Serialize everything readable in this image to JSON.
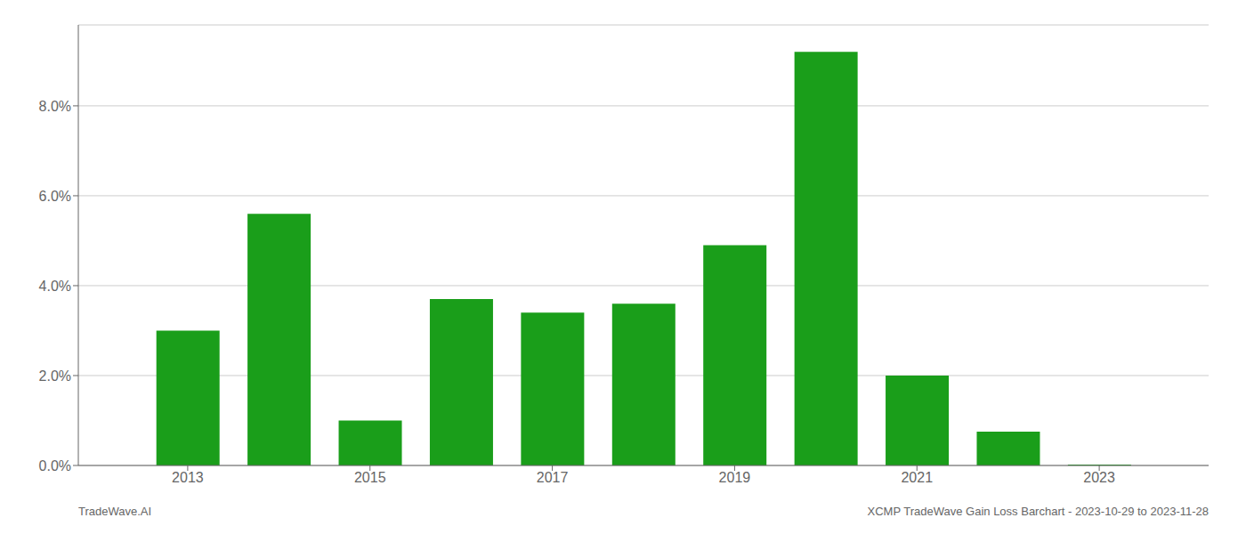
{
  "chart_data": {
    "type": "bar",
    "x": [
      2013,
      2014,
      2015,
      2016,
      2017,
      2018,
      2019,
      2020,
      2021,
      2022,
      2023
    ],
    "values": [
      0.03,
      0.056,
      0.01,
      0.037,
      0.034,
      0.036,
      0.049,
      0.092,
      0.02,
      0.0075,
      0.0002
    ],
    "color": "#1a9e1a",
    "xlim": [
      2011.8,
      2024.2
    ],
    "xticks": [
      2013,
      2015,
      2017,
      2019,
      2021,
      2023
    ],
    "ylim": [
      0,
      0.098
    ],
    "yticks": [
      {
        "value": 0.0,
        "label": "0.0%"
      },
      {
        "value": 0.02,
        "label": "2.0%"
      },
      {
        "value": 0.04,
        "label": "4.0%"
      },
      {
        "value": 0.06,
        "label": "6.0%"
      },
      {
        "value": 0.08,
        "label": "8.0%"
      }
    ],
    "grid": true,
    "annotations": [
      "TradeWave.AI",
      "XCMP TradeWave Gain Loss Barchart - 2023-10-29 to 2023-11-28"
    ]
  }
}
